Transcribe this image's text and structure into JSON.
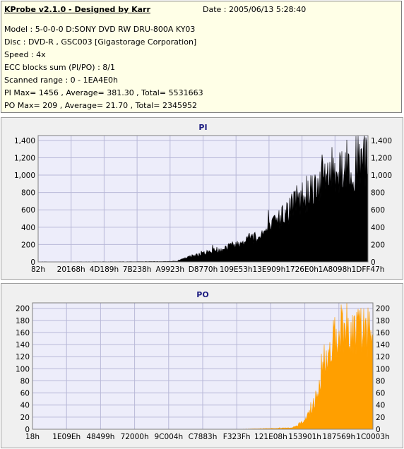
{
  "info": {
    "title": "KProbe v2.1.0 - Designed by Karr",
    "date": "Date : 2005/06/13 5:28:40",
    "lines": [
      "Model : 5-0-0-0 D:SONY    DVD RW DRU-800A  KY03",
      "Disc : DVD-R , GSC003 [Gigastorage Corporation]",
      "Speed : 4x",
      "ECC blocks sum (PI/PO) : 8/1",
      "Scanned range : 0 - 1EA4E0h",
      "PI Max= 1456 , Average= 381.30 , Total= 5531663",
      "PO Max= 209 , Average= 21.70 , Total= 2345952"
    ]
  },
  "colors": {
    "pi_fill": "#000000",
    "po_fill": "#ff9f00",
    "plot_bg": "#ededfa",
    "grid": "#b8b8d8",
    "title": "#1c1c80"
  },
  "chart_data": [
    {
      "type": "area",
      "title": "PI",
      "xlabel": "",
      "ylabel": "",
      "ylim": [
        0,
        1456
      ],
      "yticks": [
        0,
        200,
        400,
        600,
        800,
        1000,
        1200,
        1400
      ],
      "ytick_labels": [
        "0",
        "200",
        "400",
        "600",
        "800",
        "1,000",
        "1,200",
        "1,400"
      ],
      "xtick_labels": [
        "82h",
        "20168h",
        "4D189h",
        "7B238h",
        "A9923h",
        "D8770h",
        "109E53h",
        "13E909h",
        "1726E0h",
        "1A8098h",
        "1DFF47h"
      ],
      "grid": true,
      "series": [
        {
          "x_frac": [
            0,
            0.1,
            0.2,
            0.3,
            0.38,
            0.42,
            0.45,
            0.48,
            0.52,
            0.56,
            0.6,
            0.64,
            0.68,
            0.72,
            0.76,
            0.8,
            0.84,
            0.87,
            0.9,
            0.93,
            0.96,
            1.0
          ],
          "values": [
            2,
            2,
            3,
            4,
            6,
            12,
            60,
            110,
            150,
            200,
            260,
            340,
            420,
            560,
            760,
            960,
            1150,
            1280,
            1380,
            1430,
            1456,
            1456
          ]
        }
      ]
    },
    {
      "type": "area",
      "title": "PO",
      "xlabel": "",
      "ylabel": "",
      "ylim": [
        0,
        209
      ],
      "yticks": [
        0,
        20,
        40,
        60,
        80,
        100,
        120,
        140,
        160,
        180,
        200
      ],
      "ytick_labels": [
        "0",
        "20",
        "40",
        "60",
        "80",
        "100",
        "120",
        "140",
        "160",
        "180",
        "200"
      ],
      "xtick_labels": [
        "18h",
        "1E09Eh",
        "48499h",
        "72000h",
        "9C004h",
        "C7883h",
        "F323Fh",
        "121E08h",
        "153901h",
        "187569h",
        "1C0003h"
      ],
      "grid": true,
      "series": [
        {
          "x_frac": [
            0,
            0.4,
            0.6,
            0.66,
            0.72,
            0.76,
            0.78,
            0.8,
            0.82,
            0.84,
            0.86,
            0.88,
            0.9,
            0.92,
            1.0
          ],
          "values": [
            0,
            0,
            0,
            1,
            2,
            3,
            8,
            18,
            40,
            80,
            140,
            185,
            209,
            209,
            209
          ]
        }
      ]
    }
  ]
}
